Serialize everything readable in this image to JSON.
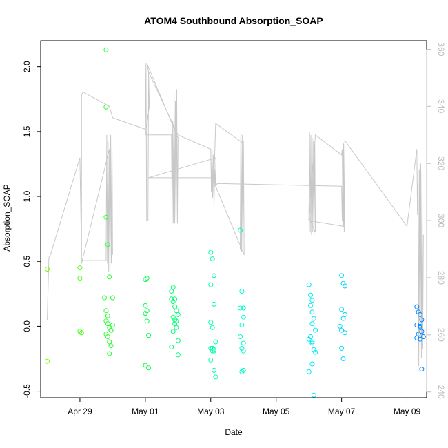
{
  "chart_data": {
    "type": "scatter",
    "title": "ATOM4 Southbound Absorption_SOAP",
    "xlabel": "Date",
    "ylabel": "Absorption_SOAP",
    "x_units": "days since Apr 29",
    "xlim": [
      -1.2,
      10.6
    ],
    "ylim": [
      -0.55,
      2.2
    ],
    "x_ticks": [
      {
        "value": 0,
        "label": "Apr 29"
      },
      {
        "value": 2,
        "label": "May 01"
      },
      {
        "value": 4,
        "label": "May 03"
      },
      {
        "value": 6,
        "label": "May 05"
      },
      {
        "value": 8,
        "label": "May 07"
      },
      {
        "value": 10,
        "label": "May 09"
      }
    ],
    "y_ticks": [
      -0.5,
      0.0,
      0.5,
      1.0,
      1.5,
      2.0
    ],
    "y_tick_labels": [
      "-0.5",
      "0.0",
      "0.5",
      "1.0",
      "1.5",
      "2.0"
    ],
    "right_axis": {
      "label": "",
      "color": "#bdbdbd",
      "ylim": [
        238,
        363
      ],
      "ticks": [
        240,
        260,
        280,
        300,
        320,
        340,
        360
      ],
      "tick_labels": [
        "240",
        "260",
        "280",
        "300",
        "320",
        "340",
        "360"
      ]
    },
    "line_color": "#c8c8c8",
    "series": [
      {
        "name": "Absorption_SOAP",
        "marker": "open-circle",
        "color_scale": [
          "#7fff00",
          "#00ff40",
          "#00ffc8",
          "#00e5ff",
          "#0080ff"
        ],
        "x": [
          -1.0,
          -1.0,
          0.0,
          0.0,
          0.0,
          0.05,
          0.8,
          0.8,
          0.8,
          0.85,
          0.9,
          0.75,
          0.8,
          0.85,
          0.8,
          0.85,
          0.9,
          0.95,
          0.8,
          0.85,
          0.9,
          0.95,
          0.9,
          1.0,
          1.0,
          0.95,
          2.0,
          2.05,
          2.0,
          2.05,
          2.0,
          2.05,
          2.1,
          2.0,
          2.1,
          2.8,
          2.85,
          2.9,
          2.8,
          2.85,
          2.9,
          2.95,
          3.0,
          2.85,
          2.9,
          2.95,
          2.9,
          2.95,
          2.85,
          3.0,
          2.8,
          3.0,
          4.0,
          4.05,
          4.1,
          4.0,
          4.1,
          4.0,
          4.05,
          4.15,
          4.0,
          4.1,
          4.05,
          4.0,
          4.1,
          4.15,
          4.1,
          4.05,
          4.9,
          4.95,
          5.0,
          4.9,
          5.0,
          4.95,
          4.9,
          5.0,
          4.95,
          5.0,
          4.95,
          5.0,
          7.0,
          7.05,
          7.1,
          7.05,
          7.1,
          7.15,
          7.1,
          7.2,
          7.05,
          7.0,
          7.1,
          7.15,
          7.2,
          7.1,
          7.0,
          7.15,
          7.1,
          8.0,
          8.05,
          8.1,
          8.0,
          8.1,
          8.05,
          7.95,
          8.0,
          8.1,
          8.0,
          8.05,
          10.3,
          10.35,
          10.4,
          10.45,
          10.3,
          10.4,
          10.45,
          10.35,
          10.5,
          10.3,
          10.4,
          10.45,
          10.4
        ],
        "y": [
          0.44,
          -0.27,
          0.45,
          0.37,
          -0.04,
          -0.05,
          2.13,
          1.69,
          0.84,
          0.63,
          0.38,
          0.22,
          0.12,
          0.08,
          0.04,
          0.02,
          -0.01,
          -0.03,
          -0.06,
          -0.08,
          -0.12,
          -0.15,
          -0.21,
          0.22,
          0.01,
          -0.03,
          0.36,
          0.37,
          0.16,
          0.12,
          0.1,
          0.04,
          -0.07,
          -0.3,
          -0.32,
          0.27,
          0.3,
          0.21,
          0.21,
          0.19,
          0.15,
          0.12,
          0.09,
          0.07,
          0.05,
          0.04,
          0.02,
          -0.01,
          -0.04,
          -0.11,
          -0.16,
          -0.22,
          0.57,
          0.52,
          0.39,
          0.32,
          0.17,
          0.03,
          -0.01,
          -0.12,
          -0.17,
          -0.18,
          -0.19,
          -0.26,
          -0.34,
          -0.39,
          -0.19,
          -0.17,
          0.74,
          0.27,
          0.14,
          0.14,
          0.07,
          0.01,
          -0.08,
          -0.13,
          -0.17,
          -0.19,
          -0.35,
          -0.34,
          0.32,
          0.24,
          0.2,
          0.16,
          0.11,
          0.06,
          0.02,
          -0.03,
          -0.08,
          -0.1,
          -0.13,
          -0.18,
          -0.2,
          -0.29,
          -0.35,
          -0.53,
          -0.12,
          0.39,
          0.33,
          0.31,
          0.13,
          0.09,
          0.06,
          0.0,
          -0.03,
          -0.05,
          -0.17,
          -0.25,
          0.15,
          0.11,
          0.09,
          0.05,
          0.01,
          -0.01,
          -0.04,
          -0.06,
          -0.08,
          -0.09,
          -0.1,
          -0.33,
          0.0
        ]
      },
      {
        "name": "secondary (right axis)",
        "type": "line",
        "x": [
          -1.0,
          -0.95,
          -0.9,
          0.0,
          0.05,
          0.8,
          0.82,
          0.84,
          0.86,
          0.88,
          0.9,
          0.92,
          0.94,
          0.96,
          0.98,
          1.0,
          0.9,
          0.05,
          0.05,
          0.1,
          0.9,
          1.0,
          2.0,
          2.02,
          2.04,
          2.06,
          2.08,
          2.1,
          2.12,
          2.0,
          2.8,
          2.82,
          2.84,
          2.86,
          2.88,
          2.9,
          2.92,
          2.94,
          2.96,
          2.98,
          3.0,
          2.05,
          2.1,
          3.0,
          3.0,
          4.0,
          4.02,
          4.04,
          4.06,
          4.08,
          4.1,
          4.12,
          4.14,
          4.16,
          2.1,
          4.1,
          4.15,
          5.0,
          4.9,
          4.92,
          4.94,
          4.96,
          4.98,
          5.0,
          5.02,
          4.15,
          4.2,
          8.0,
          8.02,
          8.04,
          8.06,
          7.0,
          7.02,
          7.04,
          7.06,
          7.08,
          7.1,
          7.12,
          7.14,
          7.16,
          7.18,
          7.2,
          7.0,
          7.2,
          8.0,
          8.02,
          8.04,
          8.06,
          8.08,
          8.1,
          10.0,
          10.3,
          10.32,
          10.34,
          10.36,
          10.38,
          10.4,
          10.42,
          10.44,
          10.46,
          10.48,
          10.5
        ],
        "y": [
          265,
          287,
          288,
          322,
          286,
          286,
          330,
          285,
          328,
          282,
          325,
          283,
          330,
          285,
          327,
          288,
          325,
          285,
          344,
          345,
          340,
          336,
          332,
          355,
          300,
          300,
          300,
          352,
          340,
          330,
          330,
          299,
          335,
          299,
          345,
          299,
          342,
          300,
          346,
          299,
          329,
          355,
          352,
          330,
          330,
          325,
          310,
          325,
          308,
          323,
          305,
          318,
          312,
          322,
          315,
          315,
          334,
          327,
          290,
          331,
          289,
          330,
          290,
          328,
          288,
          312,
          313,
          312,
          300,
          325,
          298,
          300,
          331,
          296,
          330,
          295,
          329,
          296,
          328,
          295,
          327,
          296,
          301,
          330,
          323,
          325,
          298,
          327,
          296,
          328,
          298,
          325,
          302,
          318,
          249,
          318,
          255,
          320,
          252,
          317,
          255,
          295
        ]
      }
    ]
  }
}
